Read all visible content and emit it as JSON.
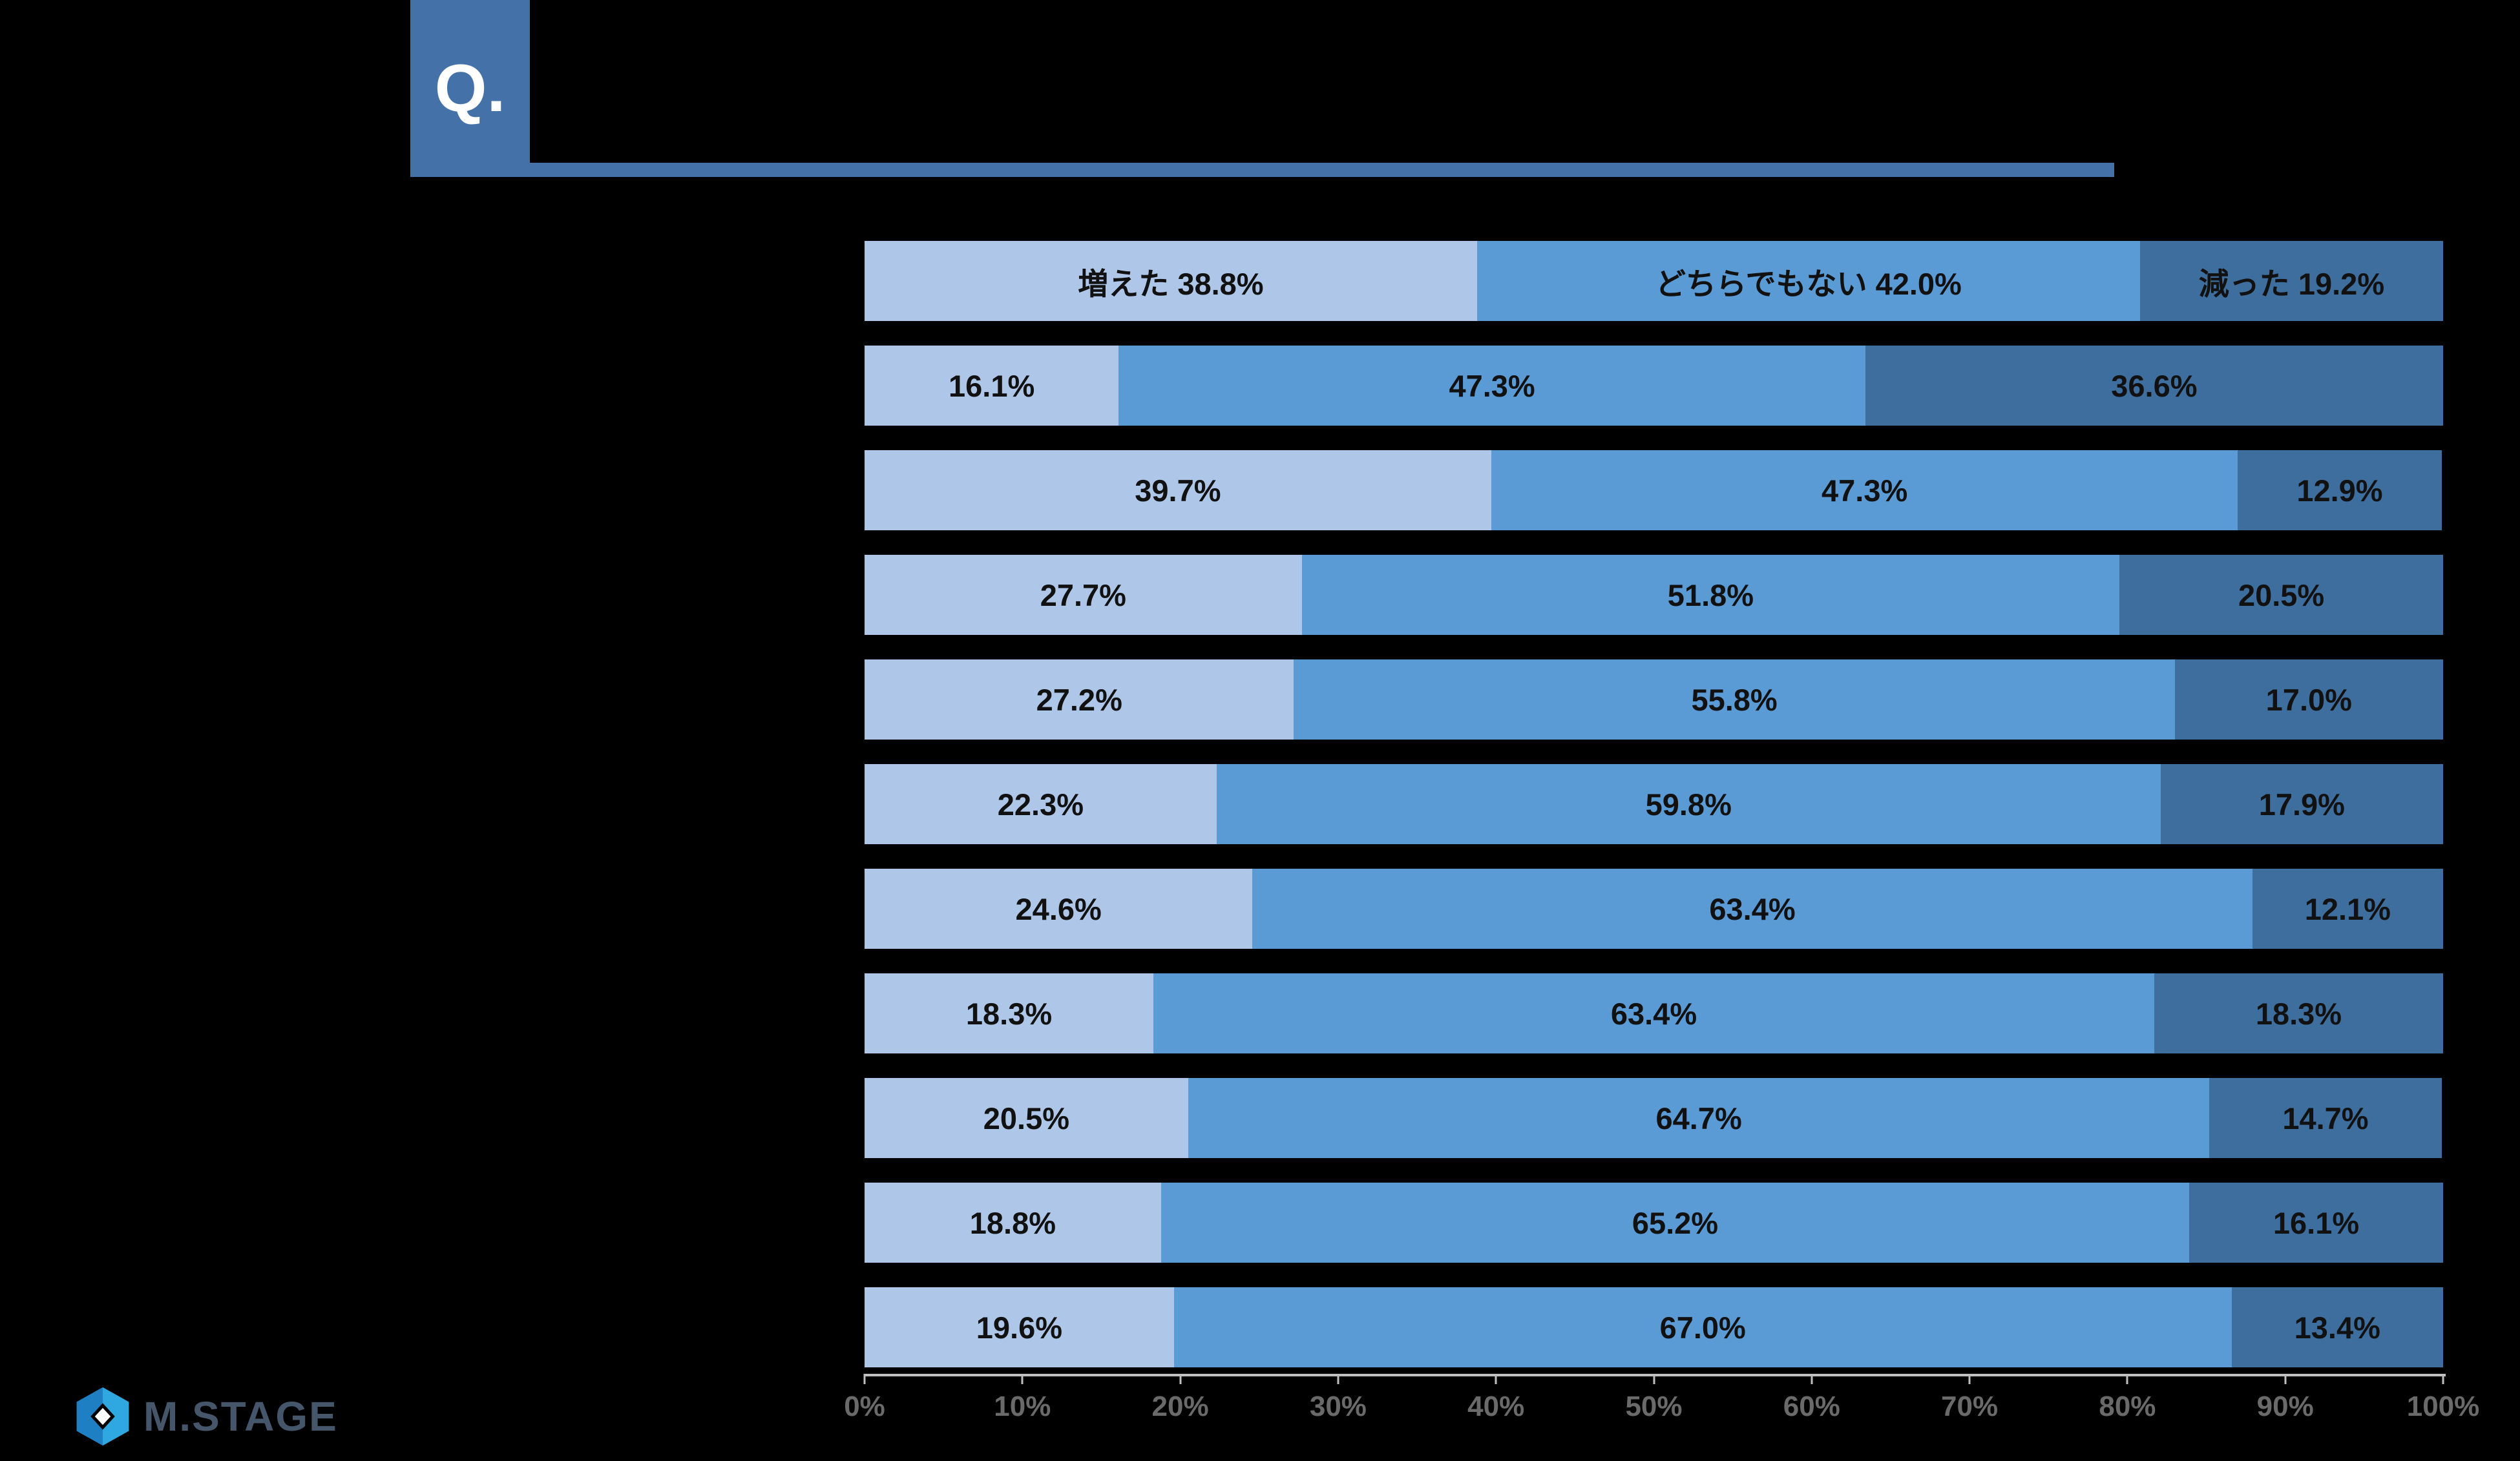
{
  "header": {
    "q_label": "Q."
  },
  "colors": {
    "background": "#000000",
    "q_box": "#4472A8",
    "underline": "#4472A8",
    "seg1": "#AEC6E8",
    "seg2": "#5B9BD5",
    "seg3": "#3E6E9E",
    "bar_text": "#111111",
    "axis_line": "#BFBFBF",
    "axis_text": "#6A6A6A",
    "logo_text": "#46566A",
    "logo_icon_dark": "#1E7FC2",
    "logo_icon_light": "#2FA8E1"
  },
  "chart_data": {
    "type": "bar",
    "orientation": "horizontal-stacked",
    "series_keys": [
      "increased",
      "neutral",
      "decreased"
    ],
    "series_names": [
      "増えた",
      "どちらでもない",
      "減った"
    ],
    "x_axis": {
      "min": 0,
      "max": 100,
      "ticks": [
        "0%",
        "10%",
        "20%",
        "30%",
        "40%",
        "50%",
        "60%",
        "70%",
        "80%",
        "90%",
        "100%"
      ],
      "grid": false
    },
    "rows": [
      {
        "values": [
          38.8,
          42.0,
          19.2
        ],
        "labels": [
          "増えた  38.8%",
          "どちらでもない  42.0%",
          "減った 19.2%"
        ]
      },
      {
        "values": [
          16.1,
          47.3,
          36.6
        ],
        "labels": [
          "16.1%",
          "47.3%",
          "36.6%"
        ]
      },
      {
        "values": [
          39.7,
          47.3,
          12.9
        ],
        "labels": [
          "39.7%",
          "47.3%",
          "12.9%"
        ]
      },
      {
        "values": [
          27.7,
          51.8,
          20.5
        ],
        "labels": [
          "27.7%",
          "51.8%",
          "20.5%"
        ]
      },
      {
        "values": [
          27.2,
          55.8,
          17.0
        ],
        "labels": [
          "27.2%",
          "55.8%",
          "17.0%"
        ]
      },
      {
        "values": [
          22.3,
          59.8,
          17.9
        ],
        "labels": [
          "22.3%",
          "59.8%",
          "17.9%"
        ]
      },
      {
        "values": [
          24.6,
          63.4,
          12.1
        ],
        "labels": [
          "24.6%",
          "63.4%",
          "12.1%"
        ]
      },
      {
        "values": [
          18.3,
          63.4,
          18.3
        ],
        "labels": [
          "18.3%",
          "63.4%",
          "18.3%"
        ]
      },
      {
        "values": [
          20.5,
          64.7,
          14.7
        ],
        "labels": [
          "20.5%",
          "64.7%",
          "14.7%"
        ]
      },
      {
        "values": [
          18.8,
          65.2,
          16.1
        ],
        "labels": [
          "18.8%",
          "65.2%",
          "16.1%"
        ]
      },
      {
        "values": [
          19.6,
          67.0,
          13.4
        ],
        "labels": [
          "19.6%",
          "67.0%",
          "13.4%"
        ]
      }
    ]
  },
  "logo": {
    "text": "M.STAGE"
  }
}
